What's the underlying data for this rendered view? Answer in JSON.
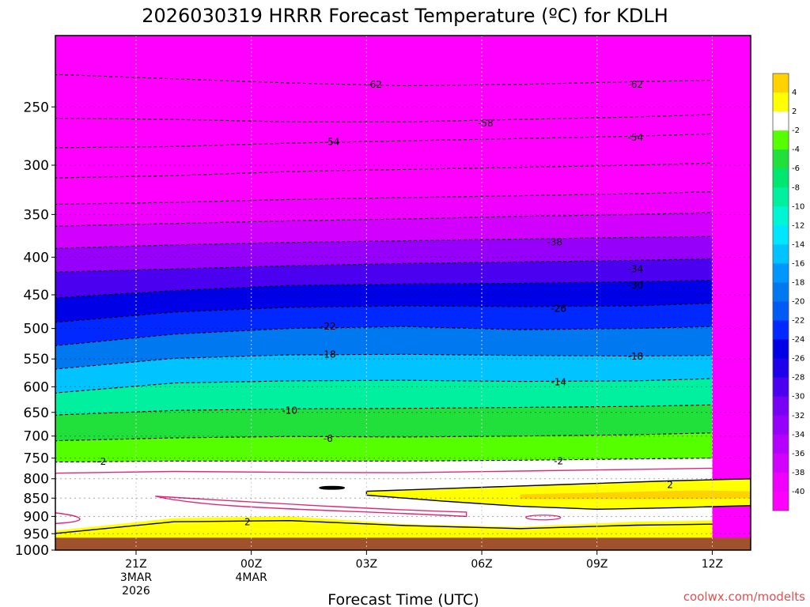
{
  "chart_data": {
    "type": "heatmap",
    "title": "2026030319 HRRR Forecast Temperature (ºC) for KDLH",
    "xlabel": "Forecast Time (UTC)",
    "ylabel": "",
    "credit": "coolwx.com/modelts",
    "x_hours": [
      -1,
      0,
      3,
      6,
      9,
      12,
      15,
      17
    ],
    "x_ticks": [
      {
        "h": 2,
        "lines": [
          "21Z",
          "3MAR",
          "2026"
        ]
      },
      {
        "h": 5,
        "lines": [
          "00Z",
          "4MAR"
        ]
      },
      {
        "h": 8,
        "lines": [
          "03Z"
        ]
      },
      {
        "h": 11,
        "lines": [
          "06Z"
        ]
      },
      {
        "h": 14,
        "lines": [
          "09Z"
        ]
      },
      {
        "h": 17,
        "lines": [
          "12Z"
        ]
      }
    ],
    "xlim": [
      -0.1,
      18.0
    ],
    "ylim_hpa": [
      200,
      1000
    ],
    "y_ticks": [
      250,
      300,
      350,
      400,
      450,
      500,
      550,
      600,
      650,
      700,
      750,
      800,
      850,
      900,
      950,
      1000
    ],
    "freezing_level_surface": "ground below ~960 hPa",
    "contours": [
      {
        "label": "-62",
        "level": -62
      },
      {
        "label": "-58",
        "level": -58
      },
      {
        "label": "-54",
        "level": -54
      },
      {
        "label": "-38",
        "level": -38
      },
      {
        "label": "-34",
        "level": -34
      },
      {
        "label": "-30",
        "level": -30
      },
      {
        "label": "-26",
        "level": -26
      },
      {
        "label": "-22",
        "level": -22
      },
      {
        "label": "-18",
        "level": -18
      },
      {
        "label": "-14",
        "level": -14
      },
      {
        "label": "-10",
        "level": -10
      },
      {
        "label": "-6",
        "level": -6
      },
      {
        "label": "-2",
        "level": -2
      },
      {
        "label": "2",
        "level": 2
      }
    ],
    "contour_labels": [
      {
        "text": "-62",
        "h": 8.2,
        "p": 233
      },
      {
        "text": "-62",
        "h": 15.0,
        "p": 233
      },
      {
        "text": "-58",
        "h": 11.1,
        "p": 263
      },
      {
        "text": "-54",
        "h": 7.1,
        "p": 279
      },
      {
        "text": "-54",
        "h": 15.0,
        "p": 275
      },
      {
        "text": "-38",
        "h": 12.9,
        "p": 382
      },
      {
        "text": "-34",
        "h": 15.0,
        "p": 415
      },
      {
        "text": "-30",
        "h": 15.0,
        "p": 437
      },
      {
        "text": "-26",
        "h": 13.0,
        "p": 470
      },
      {
        "text": "-22",
        "h": 7.0,
        "p": 497
      },
      {
        "text": "-18",
        "h": 7.0,
        "p": 542
      },
      {
        "text": "-18",
        "h": 15.0,
        "p": 546
      },
      {
        "text": "-14",
        "h": 13.0,
        "p": 591
      },
      {
        "text": "-10",
        "h": 6.0,
        "p": 646
      },
      {
        "text": "-6",
        "h": 7.0,
        "p": 706
      },
      {
        "text": "-2",
        "h": 1.1,
        "p": 758
      },
      {
        "text": "-2",
        "h": 13.0,
        "p": 757
      },
      {
        "text": "2",
        "h": 15.9,
        "p": 815
      },
      {
        "text": "2",
        "h": 4.9,
        "p": 916
      }
    ],
    "colorbar": {
      "levels": [
        "4",
        "2",
        "-2",
        "-4",
        "-6",
        "-8",
        "-10",
        "-12",
        "-14",
        "-16",
        "-18",
        "-20",
        "-22",
        "-24",
        "-26",
        "-28",
        "-30",
        "-32",
        "-34",
        "-36",
        "-38",
        "-40"
      ],
      "colors": [
        "#ffd200",
        "#ffff00",
        "#ffffff",
        "#55ff00",
        "#22e03c",
        "#00e66e",
        "#00f0a0",
        "#00f5d2",
        "#00e6ff",
        "#00c3ff",
        "#0096ff",
        "#0078f0",
        "#005af5",
        "#0028ff",
        "#0000e6",
        "#1e00eb",
        "#4b00f0",
        "#7800f5",
        "#9600fa",
        "#b400ff",
        "#d200ff",
        "#f000ff",
        "#ff00ff"
      ]
    }
  }
}
